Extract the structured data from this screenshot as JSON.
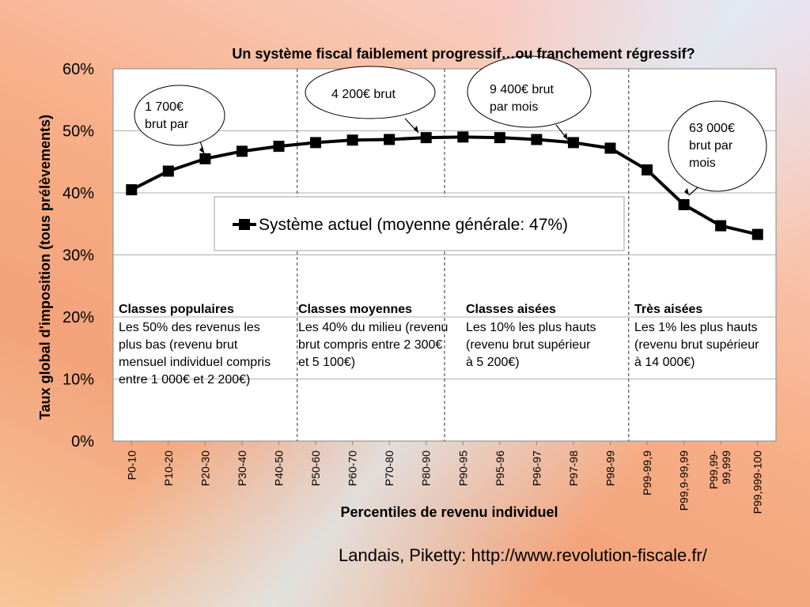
{
  "chart_data": {
    "type": "line",
    "title": "Un système fiscal faiblement progressif…ou franchement régressif?",
    "xlabel": "Percentiles de revenu individuel",
    "ylabel": "Taux global d'imposition (tous prélèvements)",
    "ylim": [
      0,
      60
    ],
    "yticks": [
      "0%",
      "10%",
      "20%",
      "30%",
      "40%",
      "50%",
      "60%"
    ],
    "grid": true,
    "categories": [
      "P0-10",
      "P10-20",
      "P20-30",
      "P30-40",
      "P40-50",
      "P50-60",
      "P60-70",
      "P70-80",
      "P80-90",
      "P90-95",
      "P95-96",
      "P96-97",
      "P97-98",
      "P98-99",
      "P99-99,9",
      "P99,9-99,99",
      "P99,99-99,999",
      "P99,999-100"
    ],
    "series": [
      {
        "name": "Système actuel (moyenne générale: 47%)",
        "color": "#000000",
        "marker": "square",
        "values": [
          40.5,
          43.5,
          45.5,
          46.7,
          47.5,
          48.1,
          48.5,
          48.6,
          48.9,
          49.0,
          48.9,
          48.6,
          48.1,
          47.2,
          43.7,
          38.1,
          34.7,
          33.3
        ]
      }
    ],
    "legend_position": "center",
    "group_dividers_after": [
      "P40-50",
      "P80-90",
      "P98-99"
    ],
    "groups": [
      {
        "title": "Classes populaires",
        "text": "Les 50% des revenus les plus bas (revenu brut mensuel individuel compris entre 1 000€ et 2 200€)"
      },
      {
        "title": "Classes moyennes",
        "text": "Les 40% du milieu (revenu brut compris entre 2 300€ et 5 100€)"
      },
      {
        "title": "Classes aisées",
        "text": "Les 10% les plus hauts (revenu brut supérieur à 5 200€)"
      },
      {
        "title": "Très aisées",
        "text": "Les 1% les plus hauts (revenu brut supérieur à 14 000€)"
      }
    ],
    "callouts": [
      {
        "text": "1 700€ brut par",
        "target": "P10-20"
      },
      {
        "text": "4 200€ brut",
        "target": "P80-90"
      },
      {
        "text": "9 400€ brut par mois",
        "target": "P97-98"
      },
      {
        "text": "63 000€ brut par mois",
        "target": "P99,9-99,99"
      }
    ]
  },
  "footer": {
    "source": "Landais, Piketty: http://www.revolution-fiscale.fr/"
  }
}
